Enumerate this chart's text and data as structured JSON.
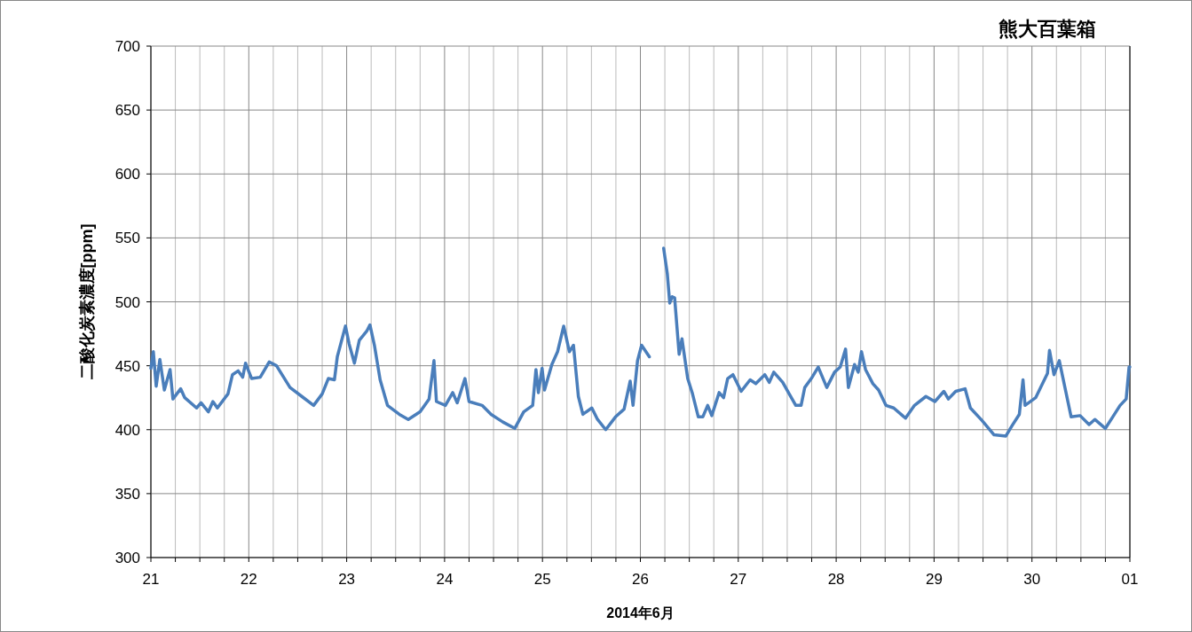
{
  "chart_data": {
    "type": "line",
    "title": "熊大百葉箱",
    "xlabel": "2014年6月",
    "ylabel": "二酸化炭素濃度[ppm]",
    "xlim": [
      "2014-06-21",
      "2014-07-01"
    ],
    "ylim": [
      300,
      700
    ],
    "yticks": [
      300,
      350,
      400,
      450,
      500,
      550,
      600,
      650,
      700
    ],
    "xticks": [
      {
        "value": "2014-06-21",
        "label": "21"
      },
      {
        "value": "2014-06-21T06:00",
        "label": null
      },
      {
        "value": "2014-06-21T12:00",
        "label": null
      },
      {
        "value": "2014-06-21T18:00",
        "label": null
      },
      {
        "value": "2014-06-22",
        "label": "22"
      },
      {
        "value": "2014-06-22T06:00",
        "label": null
      },
      {
        "value": "2014-06-22T12:00",
        "label": null
      },
      {
        "value": "2014-06-22T18:00",
        "label": null
      },
      {
        "value": "2014-06-23",
        "label": "23"
      },
      {
        "value": "2014-06-23T06:00",
        "label": null
      },
      {
        "value": "2014-06-23T12:00",
        "label": null
      },
      {
        "value": "2014-06-23T18:00",
        "label": null
      },
      {
        "value": "2014-06-24",
        "label": "24"
      },
      {
        "value": "2014-06-24T06:00",
        "label": null
      },
      {
        "value": "2014-06-24T12:00",
        "label": null
      },
      {
        "value": "2014-06-24T18:00",
        "label": null
      },
      {
        "value": "2014-06-25",
        "label": "25"
      },
      {
        "value": "2014-06-25T06:00",
        "label": null
      },
      {
        "value": "2014-06-25T12:00",
        "label": null
      },
      {
        "value": "2014-06-25T18:00",
        "label": null
      },
      {
        "value": "2014-06-26",
        "label": "26"
      },
      {
        "value": "2014-06-26T06:00",
        "label": null
      },
      {
        "value": "2014-06-26T12:00",
        "label": null
      },
      {
        "value": "2014-06-26T18:00",
        "label": null
      },
      {
        "value": "2014-06-27",
        "label": "27"
      },
      {
        "value": "2014-06-27T06:00",
        "label": null
      },
      {
        "value": "2014-06-27T12:00",
        "label": null
      },
      {
        "value": "2014-06-27T18:00",
        "label": null
      },
      {
        "value": "2014-06-28",
        "label": "28"
      },
      {
        "value": "2014-06-28T06:00",
        "label": null
      },
      {
        "value": "2014-06-28T12:00",
        "label": null
      },
      {
        "value": "2014-06-28T18:00",
        "label": null
      },
      {
        "value": "2014-06-29",
        "label": "29"
      },
      {
        "value": "2014-06-29T06:00",
        "label": null
      },
      {
        "value": "2014-06-29T12:00",
        "label": null
      },
      {
        "value": "2014-06-29T18:00",
        "label": null
      },
      {
        "value": "2014-06-30",
        "label": "30"
      },
      {
        "value": "2014-06-30T06:00",
        "label": null
      },
      {
        "value": "2014-06-30T12:00",
        "label": null
      },
      {
        "value": "2014-06-30T18:00",
        "label": null
      },
      {
        "value": "2014-07-01",
        "label": "01"
      }
    ],
    "grid": true,
    "series": [
      {
        "color": "#4a7ebb",
        "x": [
          "2014-06-21T00:00",
          "2014-06-21T00:36",
          "2014-06-21T01:18",
          "2014-06-21T02:12",
          "2014-06-21T03:18",
          "2014-06-21T04:42",
          "2014-06-21T05:24",
          "2014-06-21T07:18",
          "2014-06-21T08:18",
          "2014-06-21T11:12",
          "2014-06-21T12:18",
          "2014-06-21T14:06",
          "2014-06-21T15:12",
          "2014-06-21T16:18",
          "2014-06-21T18:54",
          "2014-06-21T20:00",
          "2014-06-21T21:24",
          "2014-06-21T22:30",
          "2014-06-21T23:12",
          "2014-06-22T00:42",
          "2014-06-22T02:48",
          "2014-06-22T05:00",
          "2014-06-22T06:48",
          "2014-06-22T10:06",
          "2014-06-22T13:00",
          "2014-06-22T15:54",
          "2014-06-22T18:00",
          "2014-06-22T19:30",
          "2014-06-22T21:00",
          "2014-06-22T21:42",
          "2014-06-22T23:42",
          "2014-06-23T00:36",
          "2014-06-23T01:54",
          "2014-06-23T03:06",
          "2014-06-23T04:54",
          "2014-06-23T05:42",
          "2014-06-23T06:48",
          "2014-06-23T08:12",
          "2014-06-23T10:00",
          "2014-06-23T12:54",
          "2014-06-23T15:06",
          "2014-06-23T18:00",
          "2014-06-23T20:12",
          "2014-06-23T21:24",
          "2014-06-23T22:00",
          "2014-06-24T00:12",
          "2014-06-24T02:00",
          "2014-06-24T03:06",
          "2014-06-24T05:00",
          "2014-06-24T06:00",
          "2014-06-24T09:12",
          "2014-06-24T11:24",
          "2014-06-24T14:18",
          "2014-06-24T17:12",
          "2014-06-24T19:24",
          "2014-06-24T21:36",
          "2014-06-24T22:24",
          "2014-06-24T23:00",
          "2014-06-24T23:54",
          "2014-06-25T00:30",
          "2014-06-25T02:18",
          "2014-06-25T03:42",
          "2014-06-25T05:12",
          "2014-06-25T06:36",
          "2014-06-25T07:36",
          "2014-06-25T08:48",
          "2014-06-25T09:54",
          "2014-06-25T12:06",
          "2014-06-25T13:30",
          "2014-06-25T15:30",
          "2014-06-25T17:54",
          "2014-06-25T20:00",
          "2014-06-25T21:30",
          "2014-06-25T22:12",
          "2014-06-25T23:18",
          "2014-06-26T00:18",
          "2014-06-26T02:12"
        ],
        "values": [
          448,
          461,
          434,
          455,
          431,
          447,
          424,
          432,
          425,
          417,
          421,
          414,
          422,
          417,
          428,
          443,
          446,
          441,
          452,
          440,
          441,
          453,
          450,
          433,
          426,
          419,
          428,
          440,
          439,
          457,
          481,
          467,
          452,
          470,
          477,
          482,
          466,
          439,
          419,
          412,
          408,
          414,
          424,
          454,
          422,
          419,
          429,
          421,
          440,
          422,
          419,
          412,
          406,
          401,
          414,
          419,
          447,
          429,
          448,
          431,
          451,
          461,
          481,
          461,
          466,
          426,
          412,
          417,
          408,
          400,
          410,
          416,
          438,
          419,
          454,
          466,
          457
        ]
      },
      {
        "color": "#4a7ebb",
        "x": [
          "2014-06-26T05:42",
          "2014-06-26T06:36",
          "2014-06-26T07:12",
          "2014-06-26T07:48",
          "2014-06-26T08:24",
          "2014-06-26T09:30",
          "2014-06-26T10:12",
          "2014-06-26T11:36",
          "2014-06-26T12:42",
          "2014-06-26T14:12",
          "2014-06-26T15:18",
          "2014-06-26T16:30",
          "2014-06-26T17:30",
          "2014-06-26T19:18",
          "2014-06-26T20:24",
          "2014-06-26T21:24",
          "2014-06-26T22:42",
          "2014-06-27T00:42",
          "2014-06-27T02:54",
          "2014-06-27T04:18",
          "2014-06-27T06:30",
          "2014-06-27T07:36",
          "2014-06-27T08:42",
          "2014-06-27T10:54",
          "2014-06-27T12:18",
          "2014-06-27T14:06",
          "2014-06-27T15:24",
          "2014-06-27T16:18",
          "2014-06-27T17:54",
          "2014-06-27T19:36",
          "2014-06-27T21:42",
          "2014-06-27T23:36",
          "2014-06-28T01:00",
          "2014-06-28T02:18",
          "2014-06-28T03:00",
          "2014-06-28T04:30",
          "2014-06-28T05:24",
          "2014-06-28T06:12",
          "2014-06-28T07:12",
          "2014-06-28T09:00",
          "2014-06-28T10:24",
          "2014-06-28T12:12",
          "2014-06-28T14:06",
          "2014-06-28T17:00",
          "2014-06-28T19:12",
          "2014-06-28T22:00",
          "2014-06-29T00:12",
          "2014-06-29T02:24",
          "2014-06-29T03:30",
          "2014-06-29T05:18",
          "2014-06-29T07:36",
          "2014-06-29T08:54",
          "2014-06-29T11:48",
          "2014-06-29T14:42",
          "2014-06-29T17:36",
          "2014-06-29T19:06",
          "2014-06-29T20:54",
          "2014-06-29T21:48",
          "2014-06-29T22:18",
          "2014-06-30T00:54",
          "2014-06-30T03:48",
          "2014-06-30T04:18",
          "2014-06-30T05:24",
          "2014-06-30T06:42",
          "2014-06-30T09:36",
          "2014-06-30T11:48",
          "2014-06-30T14:00",
          "2014-06-30T15:24",
          "2014-06-30T18:00",
          "2014-06-30T19:48",
          "2014-06-30T21:36",
          "2014-06-30T23:06",
          "2014-06-30T23:48",
          "2014-07-01T00:00"
        ],
        "values": [
          542,
          522,
          499,
          504,
          503,
          459,
          471,
          440,
          429,
          410,
          410,
          419,
          411,
          429,
          425,
          440,
          443,
          430,
          439,
          436,
          443,
          437,
          445,
          437,
          429,
          419,
          419,
          433,
          440,
          449,
          433,
          445,
          449,
          463,
          433,
          451,
          445,
          461,
          447,
          436,
          431,
          419,
          417,
          409,
          419,
          426,
          422,
          430,
          424,
          430,
          432,
          417,
          407,
          396,
          395,
          403,
          412,
          439,
          419,
          425,
          444,
          462,
          443,
          454,
          410,
          411,
          404,
          408,
          401,
          410,
          419,
          424,
          449,
          449
        ]
      }
    ]
  }
}
